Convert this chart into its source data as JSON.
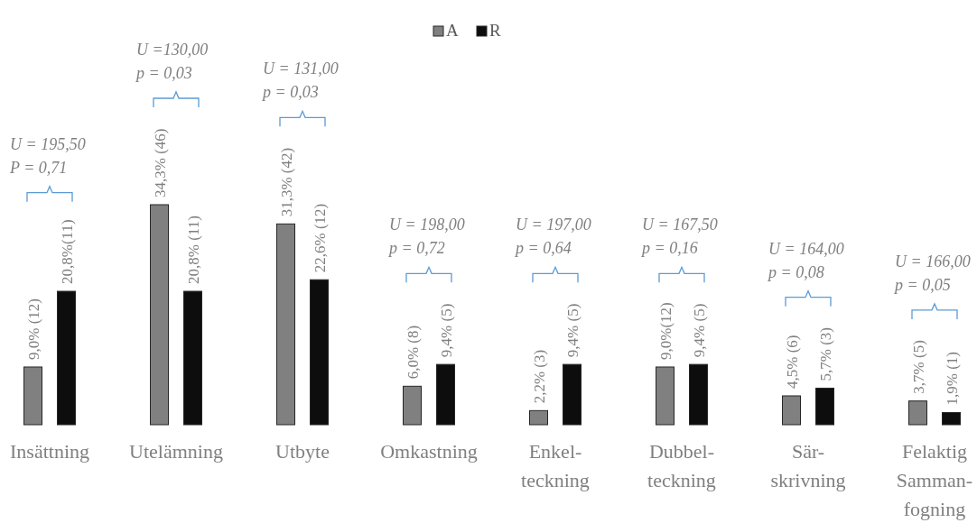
{
  "chart_data": {
    "type": "bar",
    "categories": [
      "Insättning",
      "Utelämning",
      "Utbyte",
      "Omkastning",
      "Enkel-\nteckning",
      "Dubbel-\nteckning",
      "Sär-\nskrivning",
      "Felaktig\nSamman-\nfogning"
    ],
    "series": [
      {
        "name": "A",
        "color": "#808080",
        "values": [
          9.0,
          34.3,
          31.3,
          6.0,
          2.2,
          9.0,
          4.5,
          3.7
        ],
        "value_labels": [
          "9,0% (12)",
          "34,3% (46)",
          "31,3% (42)",
          "6,0% (8)",
          "2,2% (3)",
          "9,0%(12)",
          "4,5% (6)",
          "3,7% (5)"
        ]
      },
      {
        "name": "R",
        "color": "#0d0d0d",
        "values": [
          20.8,
          20.8,
          22.6,
          9.4,
          9.4,
          9.4,
          5.7,
          1.9
        ],
        "value_labels": [
          "20,8%(11)",
          "20,8% (11)",
          "22,6% (12)",
          "9,4% (5)",
          "9,4% (5)",
          "9,4% (5)",
          "5,7% (3)",
          "1,9% (1)"
        ]
      }
    ],
    "annotations": [
      "U = 195,50\nP = 0,71",
      "U =130,00\np = 0,03",
      "U = 131,00\np = 0,03",
      "U = 198,00\np = 0,72",
      "U = 197,00\np = 0,64",
      "U = 167,50\np = 0,16",
      "U = 164,00\np = 0,08",
      "U = 166,00\np = 0,05"
    ],
    "legend": "top"
  }
}
